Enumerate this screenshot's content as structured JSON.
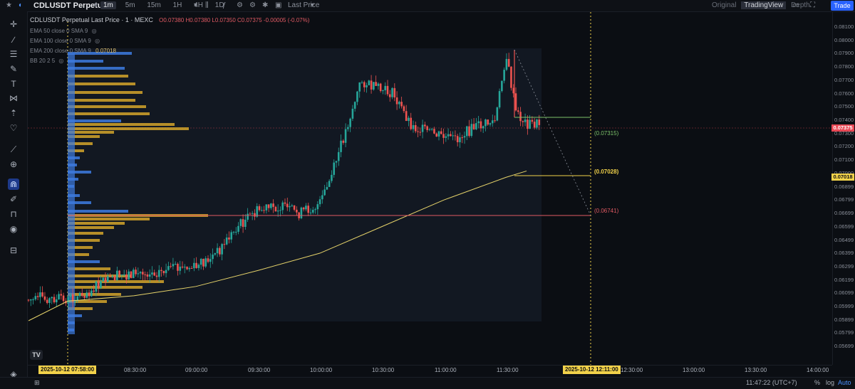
{
  "toolbar": {
    "symbol": "CDLUSDT Perpetual",
    "timeframes": [
      "1m",
      "5m",
      "15m",
      "1H",
      "4H",
      "1D"
    ],
    "active_timeframe": "1m",
    "price_type": "Last Price",
    "views": [
      "Original",
      "TradingView",
      "Depth"
    ],
    "active_view": "TradingView",
    "trade_label": "Trade"
  },
  "legend": {
    "title": "CDLUSDT Perpetual Last Price · 1 · MEXC",
    "ohlc": "O0.07380 H0.07380 L0.07350 C0.07375 -0.00005 (-0.07%)",
    "ema50": "EMA 50 close 0 SMA 9",
    "ema100": "EMA 100 close 0 SMA 9",
    "ema200": "EMA 200 close 0 SMA 9",
    "ema200_value": "0.07018",
    "bb": "BB 20 2 5"
  },
  "colors": {
    "up": "#26a69a",
    "down": "#ef5350",
    "ema": "#e6d36a",
    "vp_blue": "#3d7be0",
    "vp_yellow": "#d4a52a",
    "badge_red": "#e84855",
    "badge_yellow": "#f2d24a"
  },
  "levels": {
    "green": "(0.07315)",
    "yellow": "(0.07028)",
    "red": "(0.06741)"
  },
  "badges": {
    "last_price": "0.07375",
    "ema200": "0.07018"
  },
  "x_badges": {
    "start": "2025-10-12   07:58:00",
    "end": "2025-10-12   12:11:00"
  },
  "status": {
    "clock": "11:47:22 (UTC+7)",
    "percent": "%",
    "log": "log",
    "auto": "Auto"
  },
  "chart_data": {
    "type": "candlestick",
    "y_ticks": [
      "0.08100",
      "0.08000",
      "0.07900",
      "0.07800",
      "0.07700",
      "0.07600",
      "0.07500",
      "0.07400",
      "0.07300",
      "0.07200",
      "0.07100",
      "0.07000",
      "0.06899",
      "0.06799",
      "0.06699",
      "0.06599",
      "0.06499",
      "0.06399",
      "0.06299",
      "0.06199",
      "0.06099",
      "0.05999",
      "0.05899",
      "0.05799",
      "0.05699"
    ],
    "x_ticks": [
      "08:30:00",
      "09:00:00",
      "09:30:00",
      "10:00:00",
      "10:30:00",
      "11:00:00",
      "11:30:00",
      "12:30:00",
      "13:00:00",
      "13:30:00",
      "14:00:00"
    ],
    "ylim": [
      0.0565,
      0.0816
    ],
    "price_path": [
      [
        "07:58",
        0.0605
      ],
      [
        "08:10",
        0.0613
      ],
      [
        "08:20",
        0.0622
      ],
      [
        "08:30",
        0.0625
      ],
      [
        "08:40",
        0.0626
      ],
      [
        "08:50",
        0.0628
      ],
      [
        "09:00",
        0.0629
      ],
      [
        "09:10",
        0.064
      ],
      [
        "09:20",
        0.066
      ],
      [
        "09:30",
        0.0672
      ],
      [
        "09:40",
        0.0675
      ],
      [
        "09:50",
        0.067
      ],
      [
        "10:00",
        0.0677
      ],
      [
        "10:05",
        0.0695
      ],
      [
        "10:10",
        0.072
      ],
      [
        "10:15",
        0.0745
      ],
      [
        "10:20",
        0.077
      ],
      [
        "10:25",
        0.0765
      ],
      [
        "10:35",
        0.076
      ],
      [
        "10:45",
        0.0735
      ],
      [
        "10:55",
        0.073
      ],
      [
        "11:05",
        0.0725
      ],
      [
        "11:15",
        0.0735
      ],
      [
        "11:25",
        0.074
      ],
      [
        "11:30",
        0.079
      ],
      [
        "11:35",
        0.0745
      ],
      [
        "11:40",
        0.07375
      ]
    ],
    "ema200": [
      [
        "07:58",
        0.0604
      ],
      [
        "08:30",
        0.0608
      ],
      [
        "09:00",
        0.0615
      ],
      [
        "09:30",
        0.0627
      ],
      [
        "10:00",
        0.064
      ],
      [
        "10:30",
        0.066
      ],
      [
        "11:00",
        0.068
      ],
      [
        "11:30",
        0.0697
      ],
      [
        "11:40",
        0.07018
      ]
    ],
    "series_levels": [
      {
        "name": "(0.07315)",
        "value": 0.07315
      },
      {
        "name": "(0.07028)",
        "value": 0.07028
      },
      {
        "name": "(0.06741)",
        "value": 0.06741
      }
    ]
  }
}
